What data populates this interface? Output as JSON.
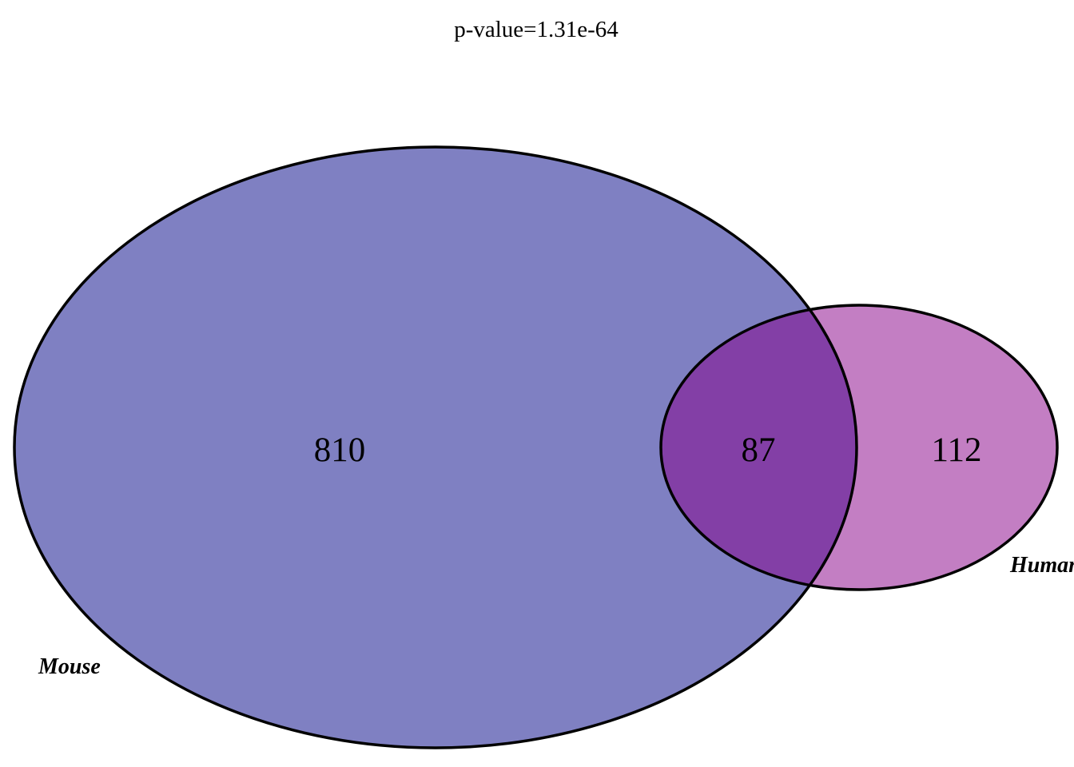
{
  "title": "p-value=1.31e-64",
  "sets": [
    {
      "name": "Mouse",
      "color": "#7f80c2"
    },
    {
      "name": "Human",
      "color": "#c37ec3"
    }
  ],
  "overlap_color": "#833fa6",
  "counts": {
    "mouse_only": "810",
    "intersection": "87",
    "human_only": "112"
  }
}
